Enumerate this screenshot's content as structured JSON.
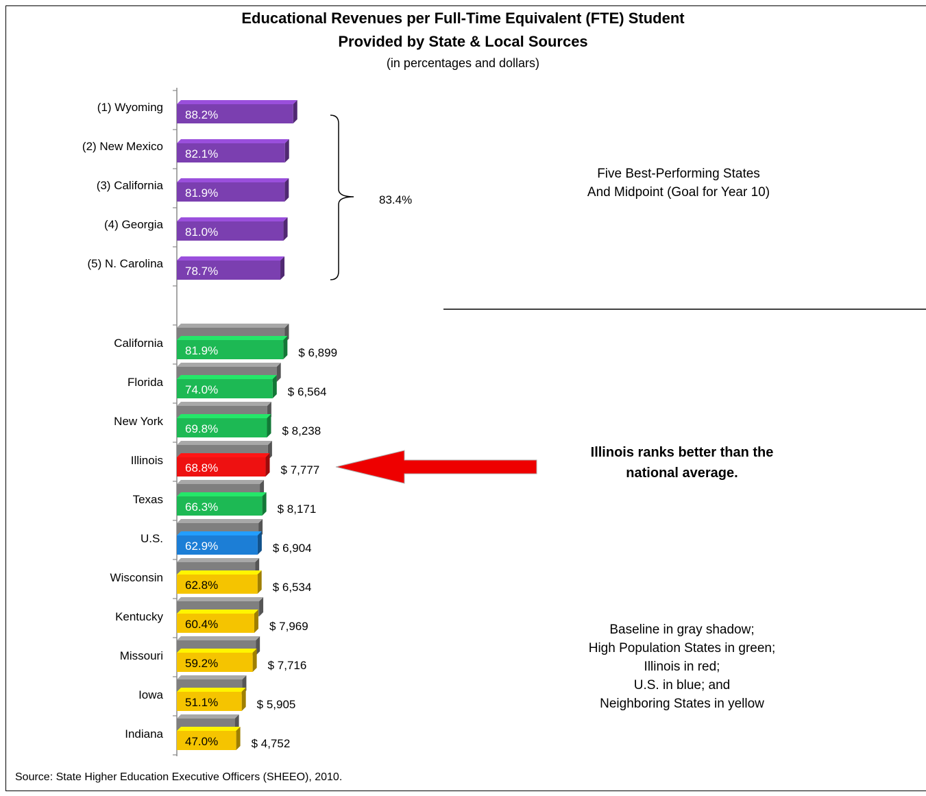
{
  "chart_data": {
    "type": "bar",
    "orientation": "horizontal",
    "title_line1": "Educational Revenues per Full-Time Equivalent (FTE) Student",
    "title_line2": "Provided by State & Local Sources",
    "subtitle": "(in percentages and dollars)",
    "top_group": {
      "categories": [
        "(1) Wyoming",
        "(2) New Mexico",
        "(3) California",
        "(4) Georgia",
        "(5) N. Carolina"
      ],
      "values": [
        88.2,
        82.1,
        81.9,
        81.0,
        78.7
      ],
      "labels": [
        "88.2%",
        "82.1%",
        "81.9%",
        "81.0%",
        "78.7%"
      ],
      "color": "#7B3FB0",
      "bracket_label": "83.4%",
      "note_line1": "Five Best-Performing States",
      "note_line2": "And Midpoint (Goal for Year 10)"
    },
    "bottom_group": {
      "categories": [
        "California",
        "Florida",
        "New York",
        "Illinois",
        "Texas",
        "U.S.",
        "Wisconsin",
        "Kentucky",
        "Missouri",
        "Iowa",
        "Indiana"
      ],
      "values": [
        81.9,
        74.0,
        69.8,
        68.8,
        66.3,
        62.9,
        62.8,
        60.4,
        59.2,
        51.1,
        47.0
      ],
      "labels": [
        "81.9%",
        "74.0%",
        "69.8%",
        "68.8%",
        "66.3%",
        "62.9%",
        "62.8%",
        "60.4%",
        "59.2%",
        "51.1%",
        "47.0%"
      ],
      "baseline_values": [
        83.0,
        77.0,
        70.0,
        70.5,
        64.5,
        63.5,
        61.0,
        64.0,
        61.5,
        51.5,
        46.0
      ],
      "dollars": [
        "$ 6,899",
        "$ 6,564",
        "$ 8,238",
        "$ 7,777",
        "$ 8,171",
        "$ 6,904",
        "$ 6,534",
        "$ 7,969",
        "$ 7,716",
        "$ 5,905",
        "$ 4,752"
      ],
      "colors": [
        "#1DB954",
        "#1DB954",
        "#1DB954",
        "#EE1111",
        "#1DB954",
        "#1C7ED6",
        "#F5C400",
        "#F5C400",
        "#F5C400",
        "#F5C400",
        "#F5C400"
      ],
      "baseline_color": "#7F7F7F"
    },
    "xlim": [
      0,
      100
    ],
    "grid": false
  },
  "annotations": {
    "illinois_line1": "Illinois ranks better than the",
    "illinois_line2": "national average.",
    "legend_lines": [
      "Baseline in gray shadow;",
      "High Population States in green;",
      "Illinois in red;",
      "U.S. in blue; and",
      "Neighboring States in yellow"
    ]
  },
  "source": "Source:  State Higher Education Executive Officers (SHEEO), 2010."
}
